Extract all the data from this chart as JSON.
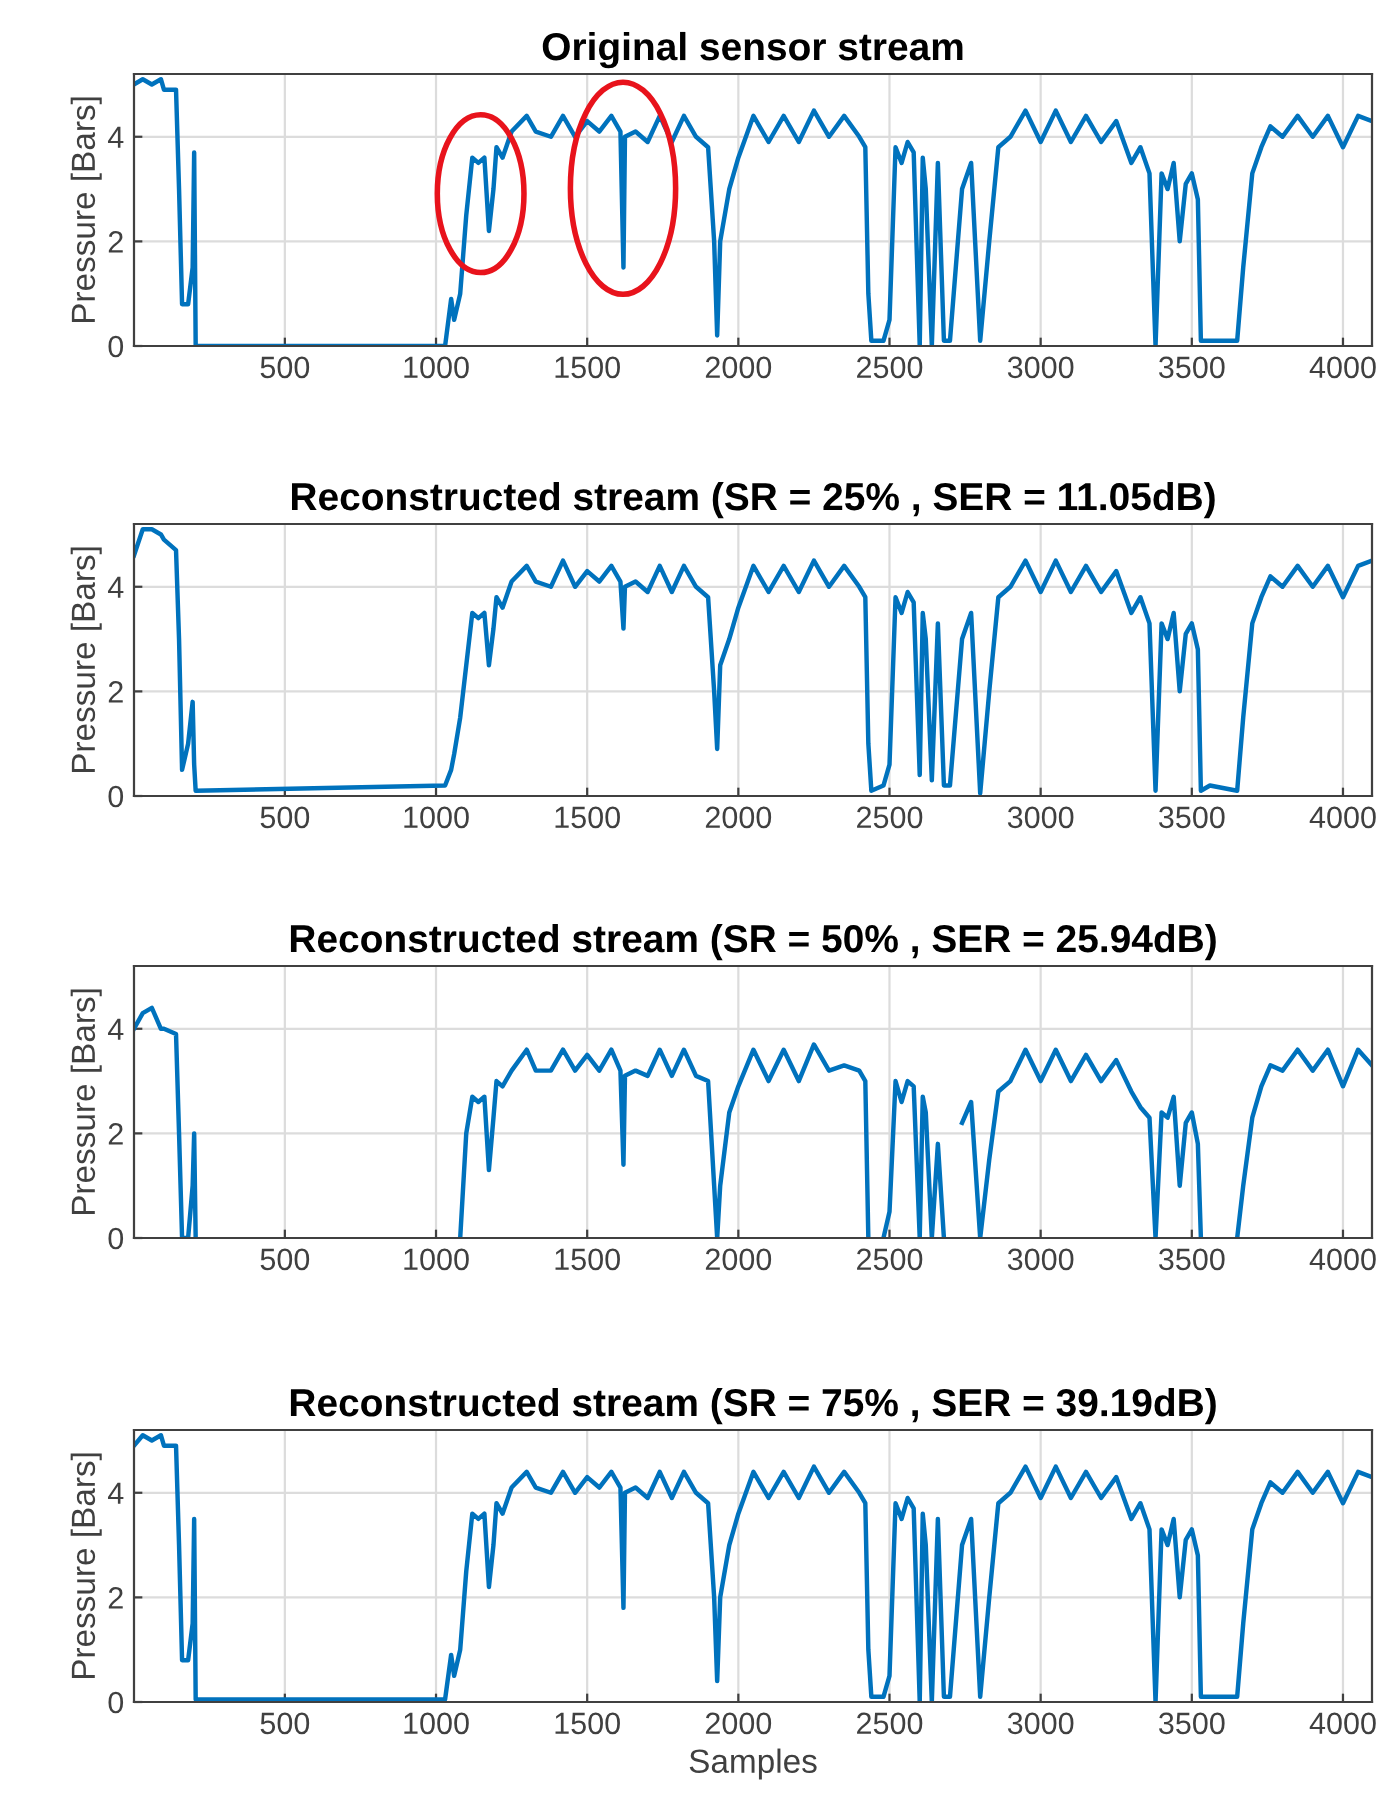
{
  "chart_data": [
    {
      "type": "line",
      "title": "Original sensor stream",
      "ylabel": "Pressure [Bars]",
      "color": "#0072bd",
      "grid": true,
      "xlim": [
        1,
        4096
      ],
      "ylim": [
        0,
        5.2
      ],
      "xticks": [
        500,
        1000,
        1500,
        2000,
        2500,
        3000,
        3500,
        4000
      ],
      "yticks": [
        0,
        2,
        4
      ],
      "x": [
        1,
        30,
        60,
        90,
        100,
        140,
        150,
        160,
        180,
        195,
        200,
        205,
        1030,
        1050,
        1060,
        1080,
        1100,
        1120,
        1140,
        1160,
        1175,
        1190,
        1200,
        1220,
        1250,
        1300,
        1330,
        1380,
        1420,
        1460,
        1500,
        1540,
        1580,
        1610,
        1620,
        1625,
        1660,
        1700,
        1740,
        1780,
        1820,
        1860,
        1900,
        1920,
        1930,
        1940,
        1970,
        2000,
        2050,
        2100,
        2150,
        2200,
        2250,
        2300,
        2350,
        2400,
        2420,
        2430,
        2440,
        2480,
        2500,
        2520,
        2540,
        2560,
        2580,
        2600,
        2610,
        2620,
        2640,
        2660,
        2680,
        2700,
        2740,
        2770,
        2800,
        2830,
        2860,
        2900,
        2950,
        3000,
        3050,
        3100,
        3150,
        3200,
        3250,
        3300,
        3330,
        3360,
        3380,
        3400,
        3420,
        3440,
        3460,
        3480,
        3500,
        3520,
        3530,
        3560,
        3650,
        3670,
        3700,
        3730,
        3760,
        3800,
        3850,
        3900,
        3950,
        4000,
        4050,
        4096
      ],
      "values": [
        5.0,
        5.1,
        5.0,
        5.1,
        4.9,
        4.9,
        3.0,
        0.8,
        0.8,
        1.5,
        3.7,
        0,
        0,
        0.9,
        0.5,
        1.0,
        2.5,
        3.6,
        3.5,
        3.6,
        2.2,
        3.0,
        3.8,
        3.6,
        4.1,
        4.4,
        4.1,
        4.0,
        4.4,
        4.0,
        4.3,
        4.1,
        4.4,
        4.1,
        1.5,
        4.0,
        4.1,
        3.9,
        4.4,
        3.9,
        4.4,
        4.0,
        3.8,
        2.0,
        0.2,
        2.0,
        3.0,
        3.6,
        4.4,
        3.9,
        4.4,
        3.9,
        4.5,
        4.0,
        4.4,
        4.0,
        3.8,
        1.0,
        0.1,
        0.1,
        0.5,
        3.8,
        3.5,
        3.9,
        3.7,
        0,
        3.6,
        3.0,
        0,
        3.5,
        0.1,
        0.1,
        3.0,
        3.5,
        0.1,
        2.0,
        3.8,
        4.0,
        4.5,
        3.9,
        4.5,
        3.9,
        4.4,
        3.9,
        4.3,
        3.5,
        3.8,
        3.3,
        0,
        3.3,
        3.0,
        3.5,
        2.0,
        3.1,
        3.3,
        2.8,
        0.1,
        0.1,
        0.1,
        1.5,
        3.3,
        3.8,
        4.2,
        4.0,
        4.4,
        4.0,
        4.4,
        3.8,
        4.4,
        4.3
      ]
    },
    {
      "type": "line",
      "title": "Reconstructed stream (SR = 25% , SER = 11.05dB)",
      "ylabel": "Pressure [Bars]",
      "color": "#0072bd",
      "grid": true,
      "xlim": [
        1,
        4096
      ],
      "ylim": [
        0,
        5.2
      ],
      "xticks": [
        500,
        1000,
        1500,
        2000,
        2500,
        3000,
        3500,
        4000
      ],
      "yticks": [
        0,
        2,
        4
      ],
      "x": [
        1,
        30,
        60,
        90,
        100,
        140,
        150,
        160,
        180,
        195,
        200,
        205,
        1030,
        1050,
        1060,
        1080,
        1100,
        1120,
        1140,
        1160,
        1175,
        1190,
        1200,
        1220,
        1250,
        1300,
        1330,
        1380,
        1420,
        1460,
        1500,
        1540,
        1580,
        1610,
        1620,
        1625,
        1660,
        1700,
        1740,
        1780,
        1820,
        1860,
        1900,
        1920,
        1930,
        1940,
        1970,
        2000,
        2050,
        2100,
        2150,
        2200,
        2250,
        2300,
        2350,
        2400,
        2420,
        2430,
        2440,
        2480,
        2500,
        2520,
        2540,
        2560,
        2580,
        2600,
        2610,
        2620,
        2640,
        2660,
        2680,
        2700,
        2740,
        2770,
        2800,
        2830,
        2860,
        2900,
        2950,
        3000,
        3050,
        3100,
        3150,
        3200,
        3250,
        3300,
        3330,
        3360,
        3380,
        3400,
        3420,
        3440,
        3460,
        3480,
        3500,
        3520,
        3530,
        3560,
        3650,
        3670,
        3700,
        3730,
        3760,
        3800,
        3850,
        3900,
        3950,
        4000,
        4050,
        4096
      ],
      "values": [
        4.6,
        5.1,
        5.1,
        5.0,
        4.9,
        4.7,
        3.0,
        0.5,
        1.0,
        1.8,
        0.6,
        0.1,
        0.2,
        0.5,
        0.8,
        1.5,
        2.5,
        3.5,
        3.4,
        3.5,
        2.5,
        3.2,
        3.8,
        3.6,
        4.1,
        4.4,
        4.1,
        4.0,
        4.5,
        4.0,
        4.3,
        4.1,
        4.4,
        4.1,
        3.2,
        4.0,
        4.1,
        3.9,
        4.4,
        3.9,
        4.4,
        4.0,
        3.8,
        2.0,
        0.9,
        2.5,
        3.0,
        3.6,
        4.4,
        3.9,
        4.4,
        3.9,
        4.5,
        4.0,
        4.4,
        4.0,
        3.8,
        1.0,
        0.1,
        0.2,
        0.6,
        3.8,
        3.5,
        3.9,
        3.7,
        0.4,
        3.5,
        3.0,
        0.3,
        3.3,
        0.2,
        0.2,
        3.0,
        3.5,
        0.05,
        2.0,
        3.8,
        4.0,
        4.5,
        3.9,
        4.5,
        3.9,
        4.4,
        3.9,
        4.3,
        3.5,
        3.8,
        3.3,
        0.1,
        3.3,
        3.0,
        3.5,
        2.0,
        3.1,
        3.3,
        2.8,
        0.1,
        0.2,
        0.1,
        1.5,
        3.3,
        3.8,
        4.2,
        4.0,
        4.4,
        4.0,
        4.4,
        3.8,
        4.4,
        4.5
      ]
    },
    {
      "type": "line",
      "title": "Reconstructed stream (SR = 50% , SER = 25.94dB)",
      "ylabel": "Pressure [Bars]",
      "color": "#0072bd",
      "grid": true,
      "xlim": [
        1,
        4096
      ],
      "ylim": [
        0,
        5.2
      ],
      "xticks": [
        500,
        1000,
        1500,
        2000,
        2500,
        3000,
        3500,
        4000
      ],
      "yticks": [
        0,
        2,
        4
      ],
      "x": [
        1,
        30,
        60,
        90,
        100,
        140,
        150,
        160,
        180,
        195,
        200,
        205,
        1030,
        1050,
        1060,
        1080,
        1100,
        1120,
        1140,
        1160,
        1175,
        1190,
        1200,
        1220,
        1250,
        1300,
        1330,
        1380,
        1420,
        1460,
        1500,
        1540,
        1580,
        1610,
        1620,
        1625,
        1660,
        1700,
        1740,
        1780,
        1820,
        1860,
        1900,
        1920,
        1930,
        1940,
        1970,
        2000,
        2050,
        2100,
        2150,
        2200,
        2250,
        2300,
        2350,
        2400,
        2420,
        2430,
        2440,
        2480,
        2500,
        2520,
        2540,
        2560,
        2580,
        2600,
        2610,
        2620,
        2640,
        2660,
        2680,
        2700,
        2740,
        2770,
        2800,
        2830,
        2860,
        2900,
        2950,
        3000,
        3050,
        3100,
        3150,
        3200,
        3250,
        3300,
        3330,
        3360,
        3380,
        3400,
        3420,
        3440,
        3460,
        3480,
        3500,
        3520,
        3530,
        3560,
        3650,
        3670,
        3700,
        3730,
        3760,
        3800,
        3850,
        3900,
        3950,
        4000,
        4050,
        4096
      ],
      "values": [
        4.0,
        4.3,
        4.4,
        4.0,
        4.0,
        3.9,
        2.0,
        0,
        0,
        1.0,
        2.0,
        0,
        null,
        null,
        null,
        0,
        2.0,
        2.7,
        2.6,
        2.7,
        1.3,
        2.3,
        3.0,
        2.9,
        3.2,
        3.6,
        3.2,
        3.2,
        3.6,
        3.2,
        3.5,
        3.2,
        3.6,
        3.2,
        1.4,
        3.1,
        3.2,
        3.1,
        3.6,
        3.1,
        3.6,
        3.1,
        3.0,
        1.0,
        0,
        1.0,
        2.4,
        2.9,
        3.6,
        3.0,
        3.6,
        3.0,
        3.7,
        3.2,
        3.3,
        3.2,
        3.0,
        0,
        null,
        0,
        0.5,
        3.0,
        2.6,
        3.0,
        2.9,
        0,
        2.7,
        2.4,
        0,
        1.8,
        0,
        null,
        2.2,
        2.6,
        0,
        1.5,
        2.8,
        3.0,
        3.6,
        3.0,
        3.6,
        3.0,
        3.5,
        3.0,
        3.4,
        2.8,
        2.5,
        2.3,
        0,
        2.4,
        2.3,
        2.7,
        1.0,
        2.2,
        2.4,
        1.8,
        0,
        null,
        0,
        1.0,
        2.3,
        2.9,
        3.3,
        3.2,
        3.6,
        3.2,
        3.6,
        2.9,
        3.6,
        3.3
      ]
    },
    {
      "type": "line",
      "title": "Reconstructed stream (SR = 75% , SER = 39.19dB)",
      "ylabel": "Pressure [Bars]",
      "xlabel": "Samples",
      "color": "#0072bd",
      "grid": true,
      "xlim": [
        1,
        4096
      ],
      "ylim": [
        0,
        5.2
      ],
      "xticks": [
        500,
        1000,
        1500,
        2000,
        2500,
        3000,
        3500,
        4000
      ],
      "yticks": [
        0,
        2,
        4
      ],
      "x": [
        1,
        30,
        60,
        90,
        100,
        140,
        150,
        160,
        180,
        195,
        200,
        205,
        1030,
        1050,
        1060,
        1080,
        1100,
        1120,
        1140,
        1160,
        1175,
        1190,
        1200,
        1220,
        1250,
        1300,
        1330,
        1380,
        1420,
        1460,
        1500,
        1540,
        1580,
        1610,
        1620,
        1625,
        1660,
        1700,
        1740,
        1780,
        1820,
        1860,
        1900,
        1920,
        1930,
        1940,
        1970,
        2000,
        2050,
        2100,
        2150,
        2200,
        2250,
        2300,
        2350,
        2400,
        2420,
        2430,
        2440,
        2480,
        2500,
        2520,
        2540,
        2560,
        2580,
        2600,
        2610,
        2620,
        2640,
        2660,
        2680,
        2700,
        2740,
        2770,
        2800,
        2830,
        2860,
        2900,
        2950,
        3000,
        3050,
        3100,
        3150,
        3200,
        3250,
        3300,
        3330,
        3360,
        3380,
        3400,
        3420,
        3440,
        3460,
        3480,
        3500,
        3520,
        3530,
        3560,
        3650,
        3670,
        3700,
        3730,
        3760,
        3800,
        3850,
        3900,
        3950,
        4000,
        4050,
        4096
      ],
      "values": [
        4.9,
        5.1,
        5.0,
        5.1,
        4.9,
        4.9,
        3.0,
        0.8,
        0.8,
        1.5,
        3.5,
        0.05,
        0.05,
        0.9,
        0.5,
        1.0,
        2.5,
        3.6,
        3.5,
        3.6,
        2.2,
        3.0,
        3.8,
        3.6,
        4.1,
        4.4,
        4.1,
        4.0,
        4.4,
        4.0,
        4.3,
        4.1,
        4.4,
        4.1,
        1.8,
        4.0,
        4.1,
        3.9,
        4.4,
        3.9,
        4.4,
        4.0,
        3.8,
        2.0,
        0.4,
        2.0,
        3.0,
        3.6,
        4.4,
        3.9,
        4.4,
        3.9,
        4.5,
        4.0,
        4.4,
        4.0,
        3.8,
        1.0,
        0.1,
        0.1,
        0.5,
        3.8,
        3.5,
        3.9,
        3.7,
        0,
        3.6,
        3.0,
        0,
        3.5,
        0.1,
        0.1,
        3.0,
        3.5,
        0.1,
        2.0,
        3.8,
        4.0,
        4.5,
        3.9,
        4.5,
        3.9,
        4.4,
        3.9,
        4.3,
        3.5,
        3.8,
        3.3,
        0,
        3.3,
        3.0,
        3.5,
        2.0,
        3.1,
        3.3,
        2.8,
        0.1,
        0.1,
        0.1,
        1.5,
        3.3,
        3.8,
        4.2,
        4.0,
        4.4,
        4.0,
        4.4,
        3.8,
        4.4,
        4.3
      ]
    }
  ]
}
